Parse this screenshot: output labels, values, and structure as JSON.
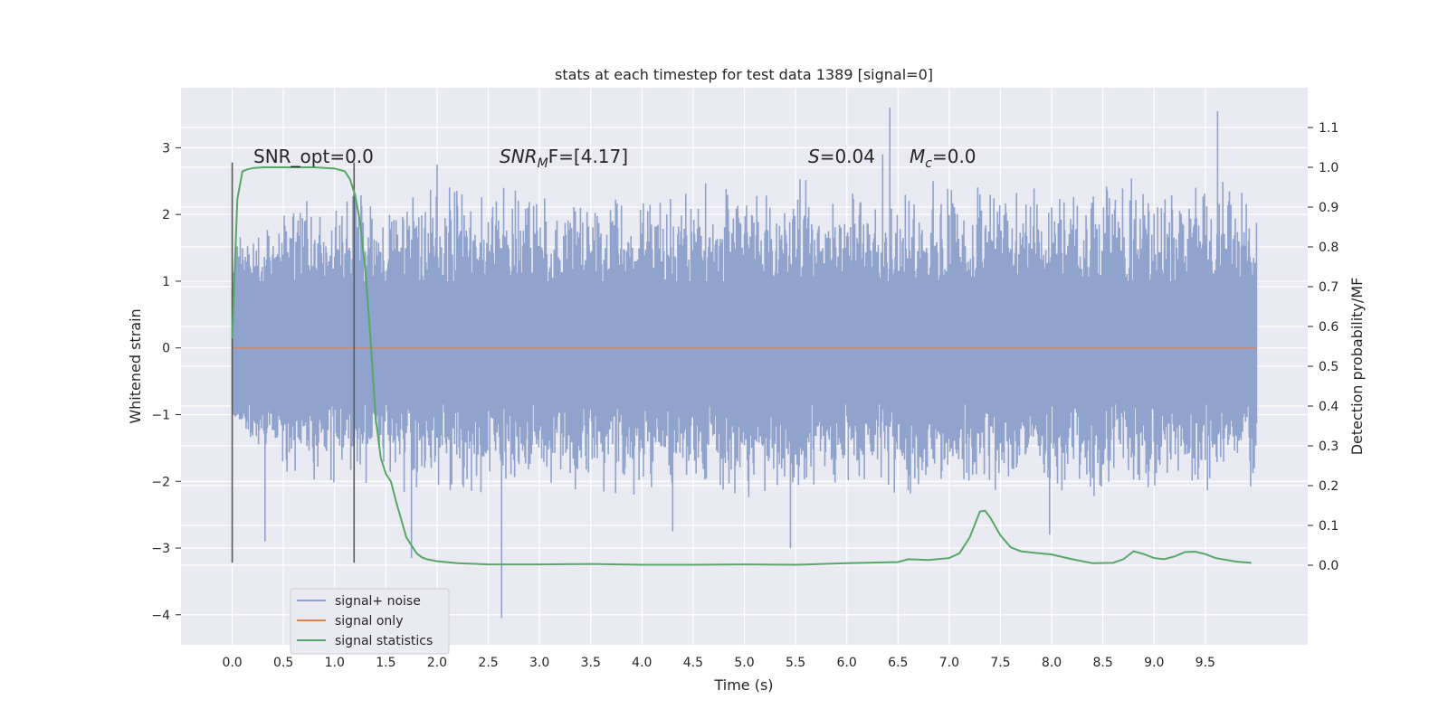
{
  "chart_data": {
    "type": "line",
    "title": "stats at each timestep for test data 1389 [signal=0]",
    "xlabel": "Time (s)",
    "ylabel_left": "Whitened strain",
    "ylabel_right": "Detection probability/MF",
    "xlim": [
      -0.5,
      10.5
    ],
    "ylim_left": [
      -4.45,
      3.9
    ],
    "ylim_right": [
      -0.2,
      1.2
    ],
    "x_ticks": [
      "0.0",
      "0.5",
      "1.0",
      "1.5",
      "2.0",
      "2.5",
      "3.0",
      "3.5",
      "4.0",
      "4.5",
      "5.0",
      "5.5",
      "6.0",
      "6.5",
      "7.0",
      "7.5",
      "8.0",
      "8.5",
      "9.0",
      "9.5"
    ],
    "y_ticks_left": [
      "−4",
      "−3",
      "−2",
      "−1",
      "0",
      "1",
      "2",
      "3"
    ],
    "y_ticks_right": [
      "0.0",
      "0.1",
      "0.2",
      "0.3",
      "0.4",
      "0.5",
      "0.6",
      "0.7",
      "0.8",
      "0.9",
      "1.0",
      "1.1"
    ],
    "grid": true,
    "legend": {
      "position": "lower-left",
      "entries": [
        {
          "label": "signal+ noise",
          "color": "#8fa3cc"
        },
        {
          "label": "signal only",
          "color": "#dd8452"
        },
        {
          "label": "signal statistics",
          "color": "#55a868"
        }
      ]
    },
    "annotations": {
      "snr_opt": {
        "text": "SNR_opt=0.0"
      },
      "snr_mf": {
        "base": "SNR",
        "sub": "M",
        "tail": "F=[4.17]"
      },
      "s_stat": {
        "italic": "S",
        "text": "=0.04"
      },
      "mc": {
        "italic": "M",
        "sub": "c",
        "text": "=0.0"
      }
    },
    "vertical_markers": [
      0.0,
      1.19
    ],
    "series": [
      {
        "name": "signal+ noise",
        "axis": "left",
        "color": "#8fa3cc",
        "x_range": [
          0.0,
          10.0
        ],
        "envelope_upper": [
          1.6,
          2.3,
          2.4,
          2.3,
          2.5,
          2.6,
          2.5,
          2.4,
          2.5,
          2.6,
          2.7,
          2.6,
          2.5,
          2.4,
          2.6,
          2.5,
          2.4,
          2.6,
          2.7,
          2.6,
          2.5
        ],
        "envelope_lower": [
          -1.2,
          -2.0,
          -2.1,
          -2.2,
          -2.3,
          -2.4,
          -2.2,
          -2.3,
          -2.4,
          -2.2,
          -2.3,
          -2.4,
          -2.2,
          -2.3,
          -2.4,
          -2.2,
          -2.3,
          -2.4,
          -2.2,
          -2.3,
          -2.2
        ],
        "spikes": [
          [
            6.42,
            3.6
          ],
          [
            9.62,
            3.55
          ],
          [
            2.63,
            -4.05
          ],
          [
            1.75,
            -3.15
          ],
          [
            0.32,
            -2.9
          ],
          [
            4.3,
            -2.75
          ],
          [
            5.45,
            -3.0
          ],
          [
            7.98,
            -2.8
          ],
          [
            6.35,
            2.9
          ],
          [
            2.0,
            2.75
          ]
        ]
      },
      {
        "name": "signal only",
        "axis": "left",
        "color": "#dd8452",
        "x": [
          0.0,
          10.0
        ],
        "y": [
          0.0,
          0.0
        ]
      },
      {
        "name": "signal statistics",
        "axis": "right",
        "color": "#55a868",
        "x": [
          0.0,
          0.05,
          0.1,
          0.15,
          0.2,
          0.3,
          0.5,
          0.8,
          1.0,
          1.1,
          1.15,
          1.2,
          1.25,
          1.3,
          1.35,
          1.4,
          1.45,
          1.5,
          1.55,
          1.6,
          1.7,
          1.8,
          1.85,
          1.9,
          2.0,
          2.2,
          2.5,
          3.0,
          3.5,
          4.0,
          4.5,
          5.0,
          5.5,
          6.0,
          6.5,
          6.6,
          6.8,
          7.0,
          7.1,
          7.2,
          7.3,
          7.35,
          7.4,
          7.5,
          7.6,
          7.7,
          7.8,
          8.0,
          8.2,
          8.4,
          8.6,
          8.7,
          8.8,
          8.9,
          9.0,
          9.1,
          9.2,
          9.3,
          9.4,
          9.5,
          9.6,
          9.8,
          9.95
        ],
        "y": [
          0.57,
          0.92,
          0.99,
          0.995,
          0.998,
          1.0,
          1.0,
          1.0,
          0.997,
          0.99,
          0.97,
          0.93,
          0.86,
          0.74,
          0.57,
          0.37,
          0.27,
          0.23,
          0.21,
          0.16,
          0.07,
          0.03,
          0.02,
          0.015,
          0.01,
          0.005,
          0.002,
          0.002,
          0.003,
          0.001,
          0.001,
          0.002,
          0.001,
          0.005,
          0.008,
          0.015,
          0.013,
          0.018,
          0.03,
          0.07,
          0.135,
          0.137,
          0.12,
          0.075,
          0.045,
          0.035,
          0.032,
          0.027,
          0.015,
          0.005,
          0.006,
          0.015,
          0.035,
          0.028,
          0.018,
          0.015,
          0.022,
          0.033,
          0.034,
          0.028,
          0.018,
          0.009,
          0.006
        ]
      }
    ]
  }
}
